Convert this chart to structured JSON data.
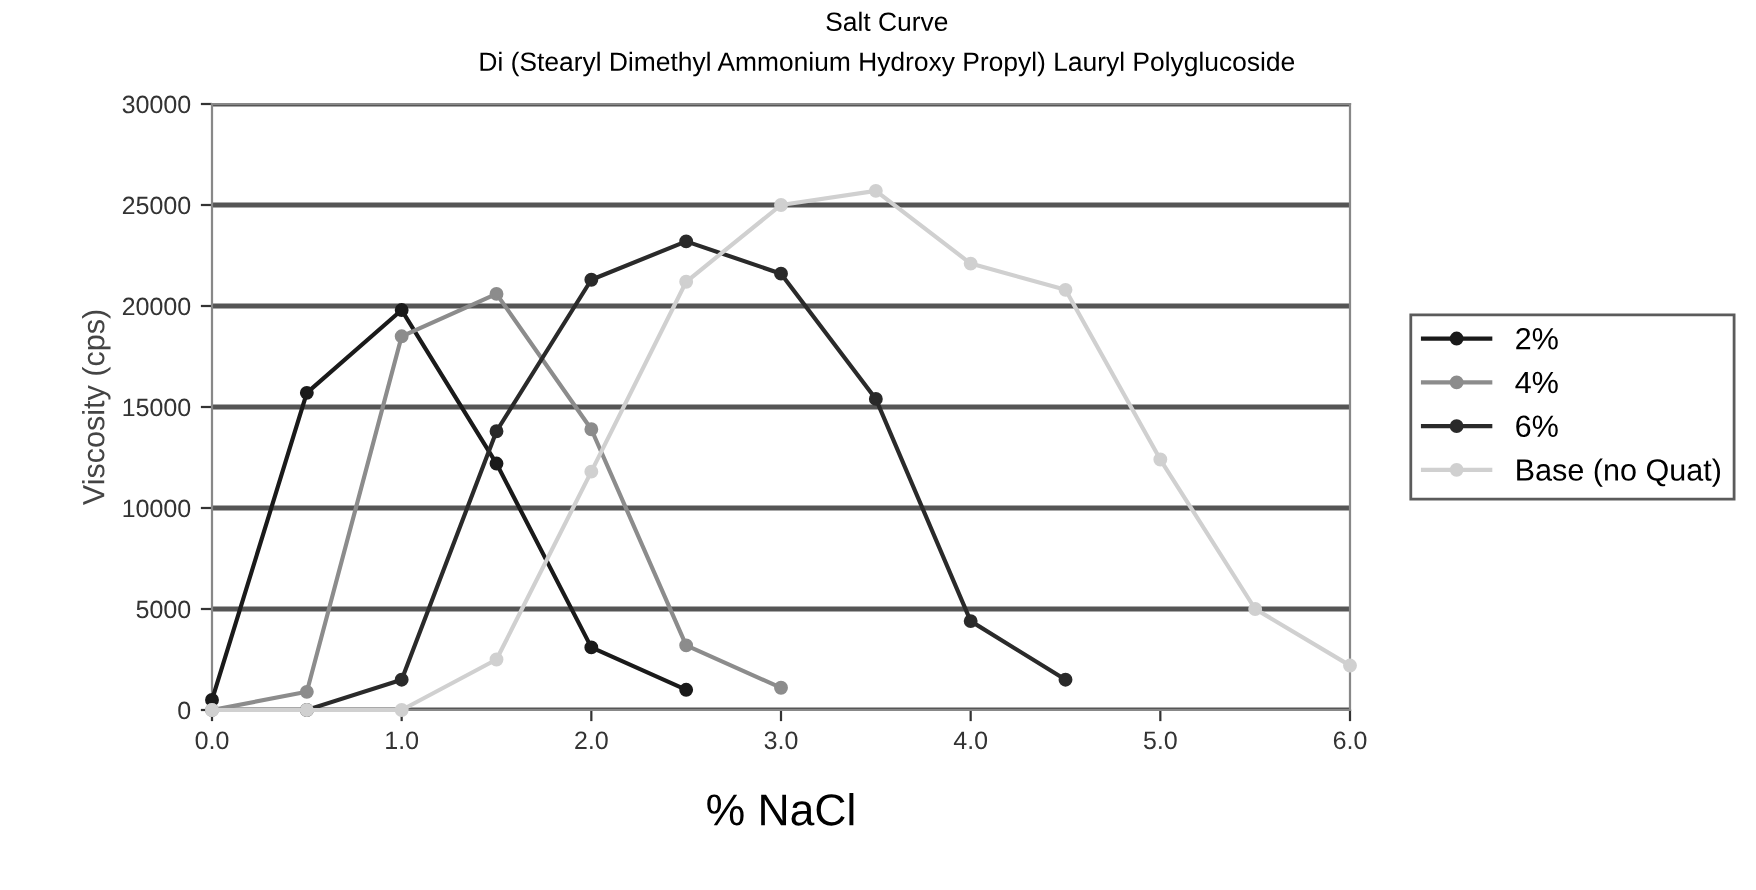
{
  "chart_data": {
    "type": "line",
    "title": "Salt Curve",
    "subtitle": "Di (Stearyl Dimethyl Ammonium Hydroxy Propyl) Lauryl Polyglucoside",
    "xlabel": "% NaCl",
    "ylabel": "Viscosity (cps)",
    "xlim": [
      0,
      6
    ],
    "xticks": [
      {
        "value": 0,
        "label": "0.0"
      },
      {
        "value": 1,
        "label": "1.0"
      },
      {
        "value": 2,
        "label": "2.0"
      },
      {
        "value": 3,
        "label": "3.0"
      },
      {
        "value": 4,
        "label": "4.0"
      },
      {
        "value": 5,
        "label": "5.0"
      },
      {
        "value": 6,
        "label": "6.0"
      }
    ],
    "ylim": [
      0,
      30000
    ],
    "yticks": [
      0,
      5000,
      10000,
      15000,
      20000,
      25000,
      30000
    ],
    "grid": "y",
    "legend": "right",
    "marker": "circle",
    "series": [
      {
        "name": "2%",
        "color": "#1a1a1a",
        "x": [
          0,
          0.5,
          1.0,
          1.5,
          2.0,
          2.5
        ],
        "values": [
          500,
          15700,
          19800,
          12200,
          3100,
          1000
        ]
      },
      {
        "name": "4%",
        "color": "#8c8c8c",
        "x": [
          0,
          0.5,
          1.0,
          1.5,
          2.0,
          2.5,
          3.0
        ],
        "values": [
          0,
          900,
          18500,
          20600,
          13900,
          3200,
          1100
        ]
      },
      {
        "name": "6%",
        "color": "#2a2a2a",
        "x": [
          0.5,
          1.0,
          1.5,
          2.0,
          2.5,
          3.0,
          3.5,
          4.0,
          4.5
        ],
        "values": [
          0,
          1500,
          13800,
          21300,
          23200,
          21600,
          15400,
          4400,
          1500
        ]
      },
      {
        "name": "Base (no Quat)",
        "color": "#d0d0d0",
        "x": [
          0,
          0.5,
          1.0,
          1.5,
          2.0,
          2.5,
          3.0,
          3.5,
          4.0,
          4.5,
          5.0,
          5.5,
          6.0
        ],
        "values": [
          0,
          0,
          0,
          2500,
          11800,
          21200,
          25000,
          25700,
          22100,
          20800,
          12400,
          5000,
          2200
        ]
      }
    ]
  }
}
